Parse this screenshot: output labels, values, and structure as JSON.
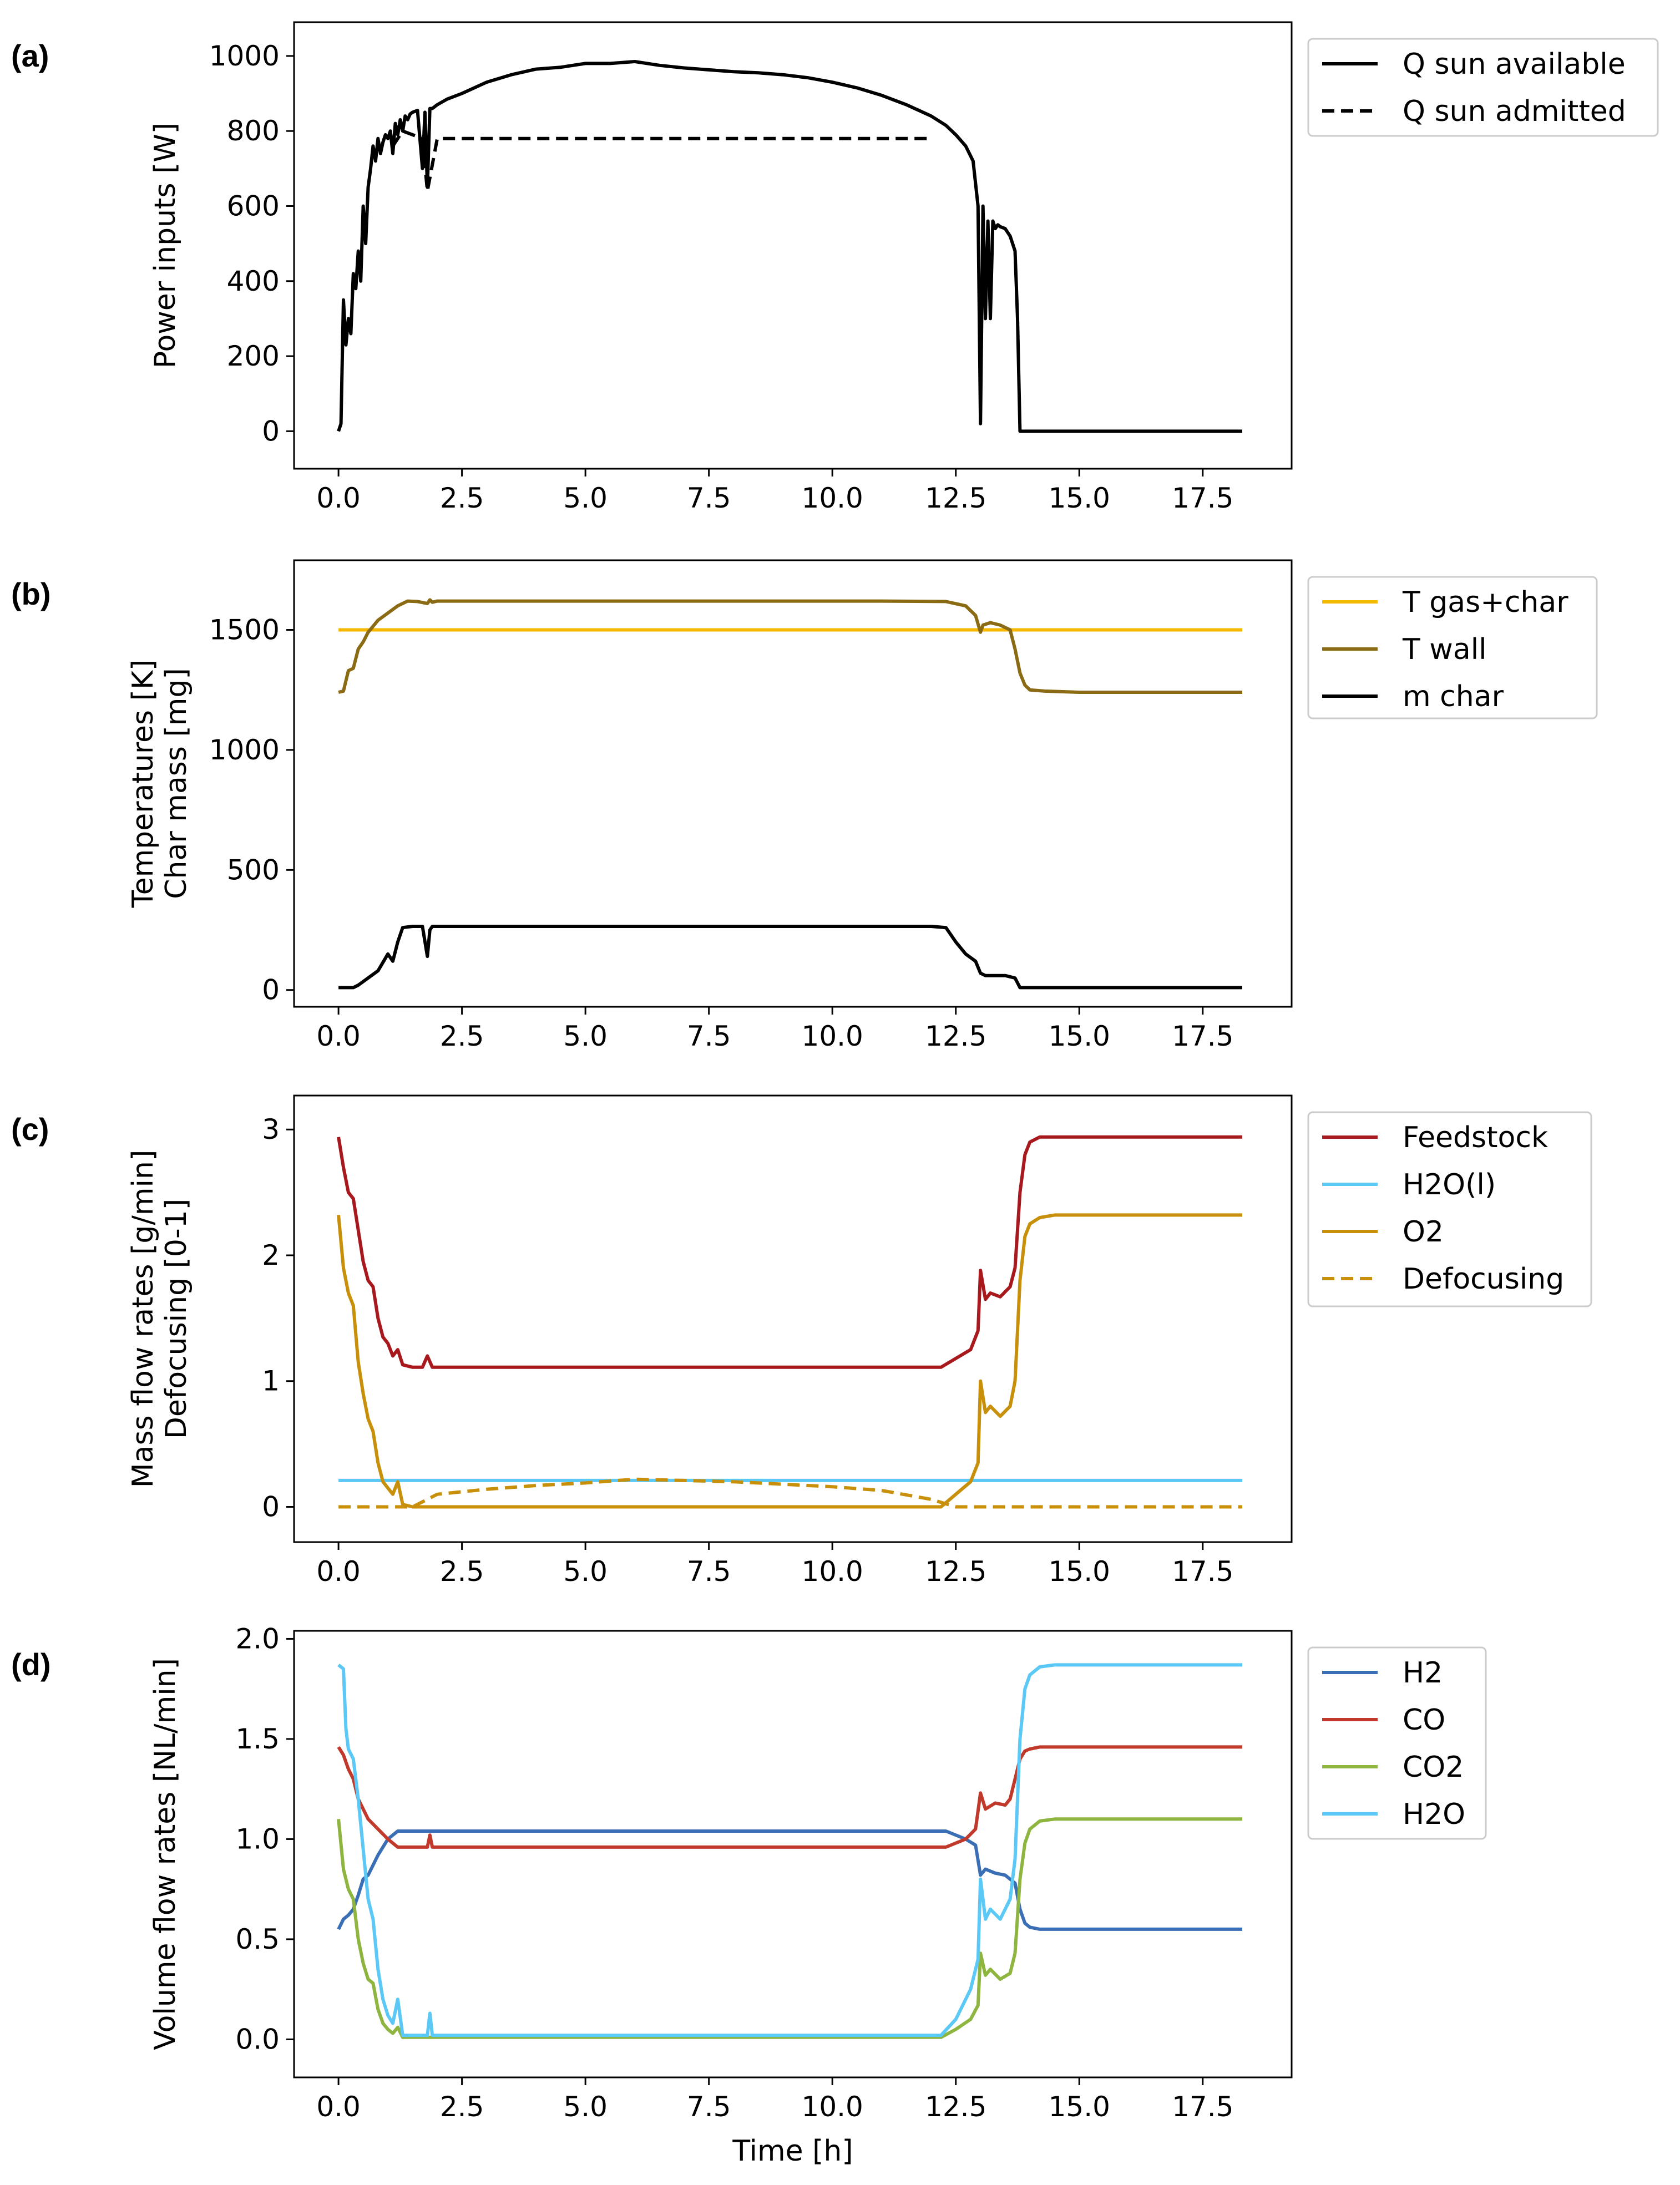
{
  "figure": {
    "xlabel": "Time [h]",
    "panels": [
      "(a)",
      "(b)",
      "(c)",
      "(d)"
    ]
  },
  "chart_data": [
    {
      "type": "line",
      "panel": "(a)",
      "xlabel": "",
      "ylabel": "Power inputs [W]",
      "xlim": [
        -0.9,
        19.3
      ],
      "ylim": [
        -100,
        1090
      ],
      "xticks": [
        0.0,
        2.5,
        5.0,
        7.5,
        10.0,
        12.5,
        15.0,
        17.5
      ],
      "yticks": [
        0,
        200,
        400,
        600,
        800,
        1000
      ],
      "legend_position": "outside-right-top",
      "series": [
        {
          "name": "Q sun available",
          "color": "#000000",
          "style": "solid",
          "x": [
            0.0,
            0.05,
            0.1,
            0.15,
            0.2,
            0.25,
            0.3,
            0.35,
            0.4,
            0.45,
            0.5,
            0.55,
            0.6,
            0.65,
            0.7,
            0.75,
            0.8,
            0.85,
            0.9,
            0.95,
            1.0,
            1.05,
            1.1,
            1.15,
            1.2,
            1.25,
            1.3,
            1.35,
            1.4,
            1.45,
            1.5,
            1.6,
            1.7,
            1.75,
            1.8,
            1.85,
            1.9,
            2.0,
            2.2,
            2.5,
            3.0,
            3.5,
            4.0,
            4.5,
            5.0,
            5.5,
            6.0,
            6.5,
            7.0,
            7.5,
            8.0,
            8.5,
            9.0,
            9.5,
            10.0,
            10.5,
            11.0,
            11.5,
            12.0,
            12.3,
            12.5,
            12.7,
            12.85,
            12.95,
            13.0,
            13.05,
            13.1,
            13.15,
            13.2,
            13.25,
            13.3,
            13.35,
            13.4,
            13.5,
            13.6,
            13.7,
            13.75,
            13.8,
            13.85,
            14.0,
            15.0,
            16.0,
            17.0,
            18.3
          ],
          "y": [
            0,
            20,
            350,
            230,
            300,
            260,
            420,
            380,
            480,
            400,
            600,
            500,
            650,
            700,
            760,
            720,
            780,
            740,
            770,
            790,
            780,
            800,
            740,
            820,
            790,
            830,
            800,
            840,
            830,
            845,
            850,
            855,
            700,
            850,
            650,
            860,
            860,
            870,
            885,
            900,
            930,
            950,
            965,
            970,
            980,
            980,
            985,
            975,
            968,
            963,
            958,
            955,
            950,
            942,
            930,
            915,
            895,
            870,
            840,
            815,
            790,
            760,
            720,
            600,
            20,
            600,
            300,
            560,
            300,
            560,
            540,
            550,
            545,
            540,
            520,
            480,
            300,
            0,
            0,
            0,
            0,
            0,
            0,
            0
          ]
        },
        {
          "name": "Q sun admitted",
          "color": "#000000",
          "style": "dashed",
          "x": [
            1.1,
            1.3,
            1.5,
            1.7,
            1.8,
            2.0,
            2.5,
            3.0,
            3.5,
            4.0,
            4.5,
            5.0,
            5.5,
            6.0,
            6.5,
            7.0,
            7.5,
            8.0,
            8.5,
            9.0,
            9.5,
            10.0,
            10.5,
            11.0,
            11.5,
            12.0
          ],
          "y": [
            760,
            800,
            790,
            780,
            640,
            780,
            780,
            780,
            780,
            780,
            780,
            780,
            780,
            780,
            780,
            780,
            780,
            780,
            780,
            780,
            780,
            780,
            780,
            780,
            780,
            780
          ]
        }
      ]
    },
    {
      "type": "line",
      "panel": "(b)",
      "xlabel": "",
      "ylabel": "Temperatures [K]",
      "ylabel2": "Char mass [mg]",
      "xlim": [
        -0.9,
        19.3
      ],
      "ylim": [
        -70,
        1790
      ],
      "xticks": [
        0.0,
        2.5,
        5.0,
        7.5,
        10.0,
        12.5,
        15.0,
        17.5
      ],
      "yticks": [
        0,
        500,
        1000,
        1500
      ],
      "legend_position": "outside-right-top",
      "series": [
        {
          "name": "T gas+char",
          "color": "#f5b800",
          "style": "solid",
          "x": [
            0.0,
            5.0,
            10.0,
            13.0,
            15.0,
            18.3
          ],
          "y": [
            1500,
            1500,
            1500,
            1500,
            1500,
            1500
          ]
        },
        {
          "name": "T wall",
          "color": "#8b6a14",
          "style": "solid",
          "x": [
            0.0,
            0.1,
            0.2,
            0.3,
            0.4,
            0.5,
            0.6,
            0.8,
            1.0,
            1.2,
            1.4,
            1.6,
            1.8,
            1.85,
            1.9,
            2.0,
            4.0,
            8.0,
            11.0,
            12.3,
            12.7,
            12.9,
            13.0,
            13.05,
            13.2,
            13.4,
            13.6,
            13.7,
            13.8,
            13.9,
            14.0,
            14.3,
            15.0,
            18.3
          ],
          "y": [
            1240,
            1245,
            1330,
            1340,
            1420,
            1450,
            1490,
            1540,
            1570,
            1600,
            1620,
            1618,
            1610,
            1625,
            1615,
            1620,
            1620,
            1620,
            1620,
            1618,
            1600,
            1560,
            1490,
            1520,
            1530,
            1520,
            1500,
            1420,
            1320,
            1270,
            1250,
            1245,
            1240,
            1240
          ]
        },
        {
          "name": "m char",
          "color": "#000000",
          "style": "solid",
          "x": [
            0.0,
            0.3,
            0.4,
            0.6,
            0.8,
            1.0,
            1.1,
            1.2,
            1.3,
            1.5,
            1.7,
            1.8,
            1.85,
            1.9,
            2.0,
            4.0,
            8.0,
            12.0,
            12.3,
            12.5,
            12.7,
            12.9,
            13.0,
            13.1,
            13.5,
            13.7,
            13.8,
            14.0,
            15.0,
            18.3
          ],
          "y": [
            10,
            10,
            20,
            50,
            80,
            150,
            120,
            200,
            260,
            265,
            265,
            140,
            250,
            265,
            265,
            265,
            265,
            265,
            260,
            200,
            150,
            120,
            70,
            60,
            60,
            50,
            10,
            10,
            10,
            10
          ]
        }
      ]
    },
    {
      "type": "line",
      "panel": "(c)",
      "xlabel": "",
      "ylabel": "Mass flow rates [g/min]",
      "ylabel2": "Defocusing [0-1]",
      "xlim": [
        -0.9,
        19.3
      ],
      "ylim": [
        -0.28,
        3.27
      ],
      "xticks": [
        0.0,
        2.5,
        5.0,
        7.5,
        10.0,
        12.5,
        15.0,
        17.5
      ],
      "yticks": [
        0,
        1,
        2,
        3
      ],
      "legend_position": "outside-right-top",
      "series": [
        {
          "name": "Feedstock",
          "color": "#a8191e",
          "style": "solid",
          "x": [
            0.0,
            0.1,
            0.2,
            0.3,
            0.4,
            0.5,
            0.6,
            0.7,
            0.8,
            0.9,
            1.0,
            1.1,
            1.2,
            1.3,
            1.5,
            1.7,
            1.8,
            1.9,
            2.0,
            5.0,
            10.0,
            12.2,
            12.5,
            12.8,
            12.95,
            13.0,
            13.1,
            13.2,
            13.4,
            13.6,
            13.7,
            13.8,
            13.9,
            14.0,
            14.2,
            14.5,
            15.0,
            18.3
          ],
          "y": [
            2.94,
            2.7,
            2.5,
            2.45,
            2.2,
            1.95,
            1.8,
            1.75,
            1.5,
            1.35,
            1.3,
            1.2,
            1.25,
            1.13,
            1.11,
            1.11,
            1.2,
            1.11,
            1.11,
            1.11,
            1.11,
            1.11,
            1.18,
            1.25,
            1.4,
            1.88,
            1.65,
            1.7,
            1.67,
            1.75,
            1.9,
            2.5,
            2.8,
            2.9,
            2.94,
            2.94,
            2.94,
            2.94
          ]
        },
        {
          "name": "H2O(l)",
          "color": "#5bc8f5",
          "style": "solid",
          "x": [
            0.0,
            5.0,
            10.0,
            15.0,
            18.3
          ],
          "y": [
            0.21,
            0.21,
            0.21,
            0.21,
            0.21
          ]
        },
        {
          "name": "O2",
          "color": "#c8900a",
          "style": "solid",
          "x": [
            0.0,
            0.1,
            0.2,
            0.3,
            0.4,
            0.5,
            0.6,
            0.7,
            0.8,
            0.9,
            1.0,
            1.1,
            1.2,
            1.3,
            1.5,
            2.0,
            5.0,
            10.0,
            12.2,
            12.5,
            12.8,
            12.95,
            13.0,
            13.1,
            13.2,
            13.4,
            13.6,
            13.7,
            13.8,
            13.9,
            14.0,
            14.2,
            14.5,
            15.0,
            18.3
          ],
          "y": [
            2.32,
            1.9,
            1.7,
            1.6,
            1.15,
            0.9,
            0.7,
            0.6,
            0.35,
            0.2,
            0.15,
            0.1,
            0.2,
            0.02,
            0.0,
            0.0,
            0.0,
            0.0,
            0.0,
            0.1,
            0.2,
            0.35,
            1.0,
            0.75,
            0.8,
            0.72,
            0.8,
            1.0,
            1.8,
            2.15,
            2.25,
            2.3,
            2.32,
            2.32,
            2.32
          ]
        },
        {
          "name": "Defocusing",
          "color": "#c8900a",
          "style": "dashed",
          "x": [
            0.0,
            1.0,
            1.5,
            2.0,
            3.0,
            4.0,
            5.0,
            6.0,
            7.0,
            8.0,
            9.0,
            10.0,
            11.0,
            12.0,
            12.5,
            13.0,
            15.0,
            18.3
          ],
          "y": [
            0.0,
            0.0,
            0.0,
            0.1,
            0.14,
            0.17,
            0.19,
            0.22,
            0.21,
            0.2,
            0.18,
            0.16,
            0.13,
            0.06,
            0.0,
            0.0,
            0.0,
            0.0
          ]
        }
      ]
    },
    {
      "type": "line",
      "panel": "(d)",
      "xlabel": "Time [h]",
      "ylabel": "Volume flow rates [NL/min]",
      "xlim": [
        -0.9,
        19.3
      ],
      "ylim": [
        -0.19,
        2.04
      ],
      "xticks": [
        0.0,
        2.5,
        5.0,
        7.5,
        10.0,
        12.5,
        15.0,
        17.5
      ],
      "yticks": [
        0.0,
        0.5,
        1.0,
        1.5,
        2.0
      ],
      "legend_position": "outside-right-top",
      "series": [
        {
          "name": "H2",
          "color": "#3a6fb5",
          "style": "solid",
          "x": [
            0.0,
            0.1,
            0.2,
            0.3,
            0.4,
            0.5,
            0.6,
            0.8,
            1.0,
            1.2,
            1.5,
            2.0,
            5.0,
            10.0,
            12.3,
            12.7,
            12.9,
            13.0,
            13.1,
            13.3,
            13.5,
            13.7,
            13.8,
            13.9,
            14.0,
            14.2,
            15.0,
            18.3
          ],
          "y": [
            0.55,
            0.6,
            0.62,
            0.65,
            0.72,
            0.8,
            0.82,
            0.92,
            1.0,
            1.04,
            1.04,
            1.04,
            1.04,
            1.04,
            1.04,
            1.0,
            0.97,
            0.82,
            0.85,
            0.83,
            0.82,
            0.78,
            0.65,
            0.58,
            0.56,
            0.55,
            0.55,
            0.55
          ]
        },
        {
          "name": "CO",
          "color": "#c0392b",
          "style": "solid",
          "x": [
            0.0,
            0.1,
            0.2,
            0.3,
            0.4,
            0.5,
            0.6,
            0.8,
            1.0,
            1.2,
            1.5,
            1.8,
            1.85,
            1.9,
            2.0,
            5.0,
            10.0,
            12.3,
            12.7,
            12.9,
            13.0,
            13.1,
            13.3,
            13.5,
            13.6,
            13.7,
            13.8,
            13.9,
            14.0,
            14.2,
            15.0,
            18.3
          ],
          "y": [
            1.46,
            1.42,
            1.35,
            1.3,
            1.2,
            1.15,
            1.1,
            1.05,
            1.0,
            0.96,
            0.96,
            0.96,
            1.02,
            0.96,
            0.96,
            0.96,
            0.96,
            0.96,
            1.0,
            1.05,
            1.23,
            1.15,
            1.18,
            1.17,
            1.2,
            1.3,
            1.4,
            1.44,
            1.45,
            1.46,
            1.46,
            1.46
          ]
        },
        {
          "name": "CO2",
          "color": "#8db53f",
          "style": "solid",
          "x": [
            0.0,
            0.1,
            0.2,
            0.3,
            0.4,
            0.5,
            0.6,
            0.7,
            0.8,
            0.9,
            1.0,
            1.1,
            1.2,
            1.3,
            1.5,
            2.0,
            5.0,
            10.0,
            12.2,
            12.5,
            12.8,
            12.95,
            13.0,
            13.1,
            13.2,
            13.4,
            13.6,
            13.7,
            13.8,
            13.9,
            14.0,
            14.2,
            14.5,
            15.0,
            18.3
          ],
          "y": [
            1.1,
            0.85,
            0.75,
            0.7,
            0.5,
            0.38,
            0.3,
            0.28,
            0.15,
            0.08,
            0.05,
            0.03,
            0.06,
            0.01,
            0.01,
            0.01,
            0.01,
            0.01,
            0.01,
            0.05,
            0.1,
            0.17,
            0.43,
            0.32,
            0.35,
            0.3,
            0.33,
            0.43,
            0.8,
            0.98,
            1.05,
            1.09,
            1.1,
            1.1,
            1.1
          ]
        },
        {
          "name": "H2O",
          "color": "#5bc8f5",
          "style": "solid",
          "x": [
            0.0,
            0.1,
            0.15,
            0.2,
            0.3,
            0.4,
            0.5,
            0.6,
            0.7,
            0.8,
            0.9,
            1.0,
            1.1,
            1.2,
            1.3,
            1.5,
            1.8,
            1.85,
            1.9,
            2.0,
            5.0,
            10.0,
            12.2,
            12.5,
            12.8,
            12.95,
            13.0,
            13.1,
            13.2,
            13.4,
            13.6,
            13.7,
            13.8,
            13.9,
            14.0,
            14.2,
            14.5,
            15.0,
            18.3
          ],
          "y": [
            1.87,
            1.85,
            1.55,
            1.45,
            1.4,
            1.2,
            0.95,
            0.7,
            0.6,
            0.35,
            0.2,
            0.12,
            0.08,
            0.2,
            0.02,
            0.02,
            0.02,
            0.13,
            0.02,
            0.02,
            0.02,
            0.02,
            0.02,
            0.1,
            0.25,
            0.4,
            0.8,
            0.6,
            0.65,
            0.6,
            0.7,
            0.9,
            1.5,
            1.75,
            1.82,
            1.86,
            1.87,
            1.87,
            1.87
          ]
        }
      ]
    }
  ]
}
